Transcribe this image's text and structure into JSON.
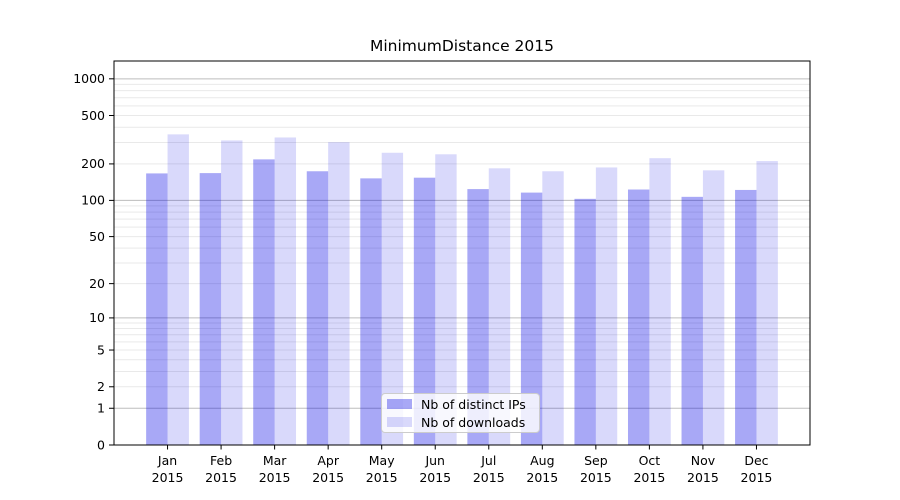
{
  "title": "MinimumDistance 2015",
  "chart_data": {
    "type": "bar",
    "title": "MinimumDistance 2015",
    "yscale": "log1p",
    "ylim": [
      0,
      1400
    ],
    "yticks": [
      1000,
      500,
      200,
      100,
      50,
      20,
      10,
      5,
      2,
      1,
      0
    ],
    "grid": "on",
    "legend_position": "lower center",
    "xlabel": "",
    "ylabel": "",
    "categories": [
      [
        "Jan",
        "2015"
      ],
      [
        "Feb",
        "2015"
      ],
      [
        "Mar",
        "2015"
      ],
      [
        "Apr",
        "2015"
      ],
      [
        "May",
        "2015"
      ],
      [
        "Jun",
        "2015"
      ],
      [
        "Jul",
        "2015"
      ],
      [
        "Aug",
        "2015"
      ],
      [
        "Sep",
        "2015"
      ],
      [
        "Oct",
        "2015"
      ],
      [
        "Nov",
        "2015"
      ],
      [
        "Dec",
        "2015"
      ]
    ],
    "series": [
      {
        "name": "Nb of distinct IPs",
        "color": "#0000E657",
        "values": [
          167,
          168,
          218,
          174,
          152,
          154,
          124,
          116,
          103,
          123,
          107,
          122
        ]
      },
      {
        "name": "Nb of downloads",
        "color": "#0000E626",
        "values": [
          350,
          312,
          330,
          302,
          247,
          240,
          184,
          174,
          187,
          223,
          177,
          211
        ]
      }
    ],
    "colors": {
      "grid_major": "#bdbdbd",
      "grid_minor": "#e9e9e9",
      "axis": "#000000",
      "text": "#000000"
    }
  }
}
